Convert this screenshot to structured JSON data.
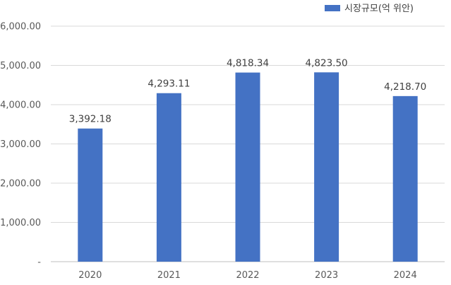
{
  "chart_data": {
    "type": "bar",
    "categories": [
      "2020",
      "2021",
      "2022",
      "2023",
      "2024"
    ],
    "series": [
      {
        "name": "시장규모(억 위안)",
        "values": [
          3392.18,
          4293.11,
          4818.34,
          4823.5,
          4218.7
        ],
        "value_labels": [
          "3,392.18",
          "4,293.11",
          "4,818.34",
          "4,823.50",
          "4,218.70"
        ],
        "color": "#4472c4"
      }
    ],
    "ylim": [
      0,
      6000
    ],
    "yticks": [
      0,
      1000,
      2000,
      3000,
      4000,
      5000,
      6000
    ],
    "ytick_labels": [
      "-",
      "1,000.00",
      "2,000.00",
      "3,000.00",
      "4,000.00",
      "5,000.00",
      "6,000.00"
    ],
    "title": "",
    "xlabel": "",
    "ylabel": "",
    "grid": true,
    "legend_position": "top-right"
  }
}
